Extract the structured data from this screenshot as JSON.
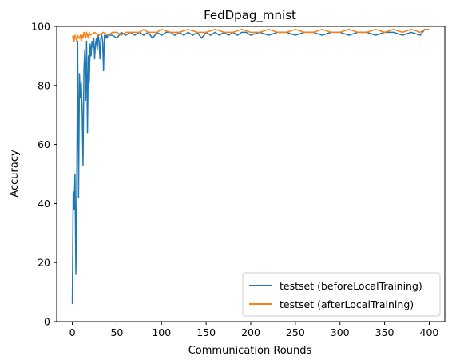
{
  "chart_data": {
    "type": "line",
    "title": "FedDpag_mnist",
    "xlabel": "Communication Rounds",
    "ylabel": "Accuracy",
    "xlim": [
      -17.5,
      417.5
    ],
    "ylim": [
      0,
      100
    ],
    "xticks": [
      0,
      50,
      100,
      150,
      200,
      250,
      300,
      350,
      400
    ],
    "yticks": [
      0,
      20,
      40,
      60,
      80,
      100
    ],
    "legend_position": "lower-right",
    "series": [
      {
        "name": "testset (beforeLocalTraining)",
        "color": "#1f77b4",
        "points": [
          [
            0,
            6
          ],
          [
            1,
            44
          ],
          [
            2,
            38
          ],
          [
            3,
            50
          ],
          [
            4,
            16
          ],
          [
            5,
            46
          ],
          [
            6,
            95
          ],
          [
            7,
            42
          ],
          [
            8,
            84
          ],
          [
            9,
            76
          ],
          [
            10,
            81
          ],
          [
            11,
            72
          ],
          [
            12,
            53
          ],
          [
            13,
            85
          ],
          [
            14,
            92
          ],
          [
            15,
            75
          ],
          [
            16,
            95
          ],
          [
            17,
            64
          ],
          [
            18,
            90
          ],
          [
            19,
            81
          ],
          [
            20,
            94
          ],
          [
            21,
            90
          ],
          [
            22,
            95
          ],
          [
            23,
            93
          ],
          [
            24,
            96
          ],
          [
            25,
            89
          ],
          [
            26,
            94
          ],
          [
            27,
            96
          ],
          [
            28,
            92
          ],
          [
            29,
            97
          ],
          [
            30,
            95
          ],
          [
            31,
            89
          ],
          [
            32,
            96
          ],
          [
            33,
            97
          ],
          [
            34,
            95
          ],
          [
            35,
            85
          ],
          [
            36,
            97
          ],
          [
            37,
            96
          ],
          [
            38,
            97
          ],
          [
            39,
            96
          ],
          [
            40,
            97
          ],
          [
            45,
            97
          ],
          [
            50,
            96
          ],
          [
            55,
            98
          ],
          [
            60,
            97
          ],
          [
            65,
            98
          ],
          [
            70,
            97
          ],
          [
            75,
            98
          ],
          [
            80,
            97
          ],
          [
            85,
            98
          ],
          [
            90,
            96
          ],
          [
            95,
            98
          ],
          [
            100,
            97
          ],
          [
            105,
            98
          ],
          [
            110,
            98
          ],
          [
            115,
            97
          ],
          [
            120,
            98
          ],
          [
            125,
            97
          ],
          [
            130,
            98
          ],
          [
            135,
            97
          ],
          [
            140,
            98
          ],
          [
            145,
            96
          ],
          [
            150,
            98
          ],
          [
            155,
            97
          ],
          [
            160,
            98
          ],
          [
            165,
            97
          ],
          [
            170,
            98
          ],
          [
            175,
            97
          ],
          [
            180,
            98
          ],
          [
            185,
            97
          ],
          [
            190,
            98
          ],
          [
            195,
            98
          ],
          [
            200,
            97
          ],
          [
            210,
            98
          ],
          [
            220,
            97
          ],
          [
            230,
            98
          ],
          [
            240,
            98
          ],
          [
            250,
            97
          ],
          [
            260,
            98
          ],
          [
            270,
            98
          ],
          [
            280,
            97
          ],
          [
            290,
            98
          ],
          [
            300,
            98
          ],
          [
            310,
            97
          ],
          [
            320,
            98
          ],
          [
            330,
            98
          ],
          [
            340,
            97
          ],
          [
            350,
            98
          ],
          [
            360,
            98
          ],
          [
            370,
            97
          ],
          [
            380,
            98
          ],
          [
            390,
            97
          ],
          [
            395,
            99
          ],
          [
            400,
            99
          ]
        ]
      },
      {
        "name": "testset (afterLocalTraining)",
        "color": "#ff7f0e",
        "points": [
          [
            0,
            96
          ],
          [
            1,
            97
          ],
          [
            2,
            95
          ],
          [
            3,
            97
          ],
          [
            4,
            96
          ],
          [
            5,
            95
          ],
          [
            6,
            97
          ],
          [
            7,
            96
          ],
          [
            8,
            96
          ],
          [
            9,
            97
          ],
          [
            10,
            95
          ],
          [
            11,
            97
          ],
          [
            12,
            96
          ],
          [
            13,
            98
          ],
          [
            14,
            97
          ],
          [
            15,
            96
          ],
          [
            16,
            98
          ],
          [
            17,
            97
          ],
          [
            18,
            96
          ],
          [
            19,
            98
          ],
          [
            20,
            97
          ],
          [
            25,
            98
          ],
          [
            30,
            97
          ],
          [
            35,
            98
          ],
          [
            40,
            97
          ],
          [
            45,
            98
          ],
          [
            50,
            98
          ],
          [
            55,
            97
          ],
          [
            60,
            98
          ],
          [
            65,
            98
          ],
          [
            70,
            98
          ],
          [
            75,
            98
          ],
          [
            80,
            99
          ],
          [
            85,
            98
          ],
          [
            90,
            98
          ],
          [
            95,
            98
          ],
          [
            100,
            99
          ],
          [
            110,
            98
          ],
          [
            120,
            98
          ],
          [
            130,
            99
          ],
          [
            140,
            98
          ],
          [
            150,
            98
          ],
          [
            160,
            99
          ],
          [
            170,
            98
          ],
          [
            180,
            98
          ],
          [
            190,
            99
          ],
          [
            200,
            98
          ],
          [
            210,
            98
          ],
          [
            220,
            99
          ],
          [
            230,
            98
          ],
          [
            240,
            98
          ],
          [
            250,
            99
          ],
          [
            260,
            98
          ],
          [
            270,
            98
          ],
          [
            280,
            99
          ],
          [
            290,
            98
          ],
          [
            300,
            98
          ],
          [
            310,
            99
          ],
          [
            320,
            98
          ],
          [
            330,
            98
          ],
          [
            340,
            99
          ],
          [
            350,
            98
          ],
          [
            360,
            99
          ],
          [
            370,
            98
          ],
          [
            380,
            99
          ],
          [
            390,
            98
          ],
          [
            395,
            99
          ],
          [
            400,
            99
          ]
        ]
      }
    ]
  }
}
